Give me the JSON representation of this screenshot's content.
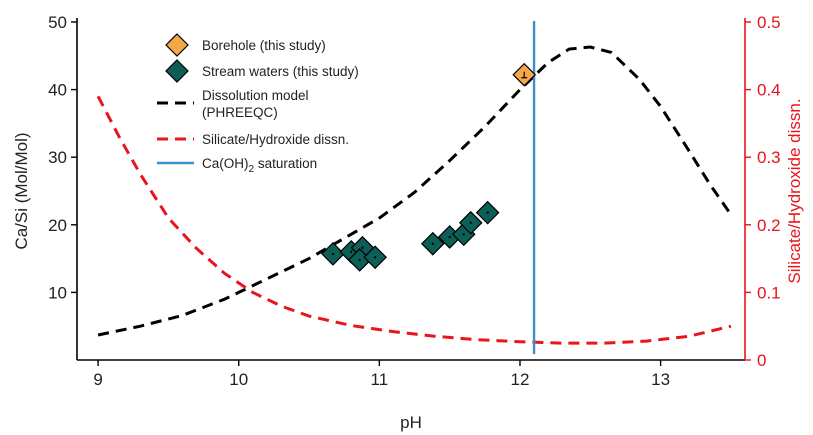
{
  "chart_data": {
    "type": "scatter",
    "xlabel": "pH",
    "ylabel": "Ca/Si (Mol/Mol)",
    "y2label": "Silicate/Hydroxide dissn.",
    "xlim": [
      8.85,
      13.6
    ],
    "ylim": [
      0,
      50
    ],
    "y2lim": [
      0,
      0.5
    ],
    "xticks": [
      9,
      10,
      11,
      12,
      13
    ],
    "yticks": [
      10,
      20,
      30,
      40,
      50
    ],
    "y2ticks": [
      0,
      0.1,
      0.2,
      0.3,
      0.4,
      0.5
    ],
    "y2ticklabels": [
      "0",
      "0.1",
      "0.2",
      "0.3",
      "0.4",
      "0.5"
    ],
    "grid": false,
    "legend_position": "top-left",
    "colors": {
      "borehole": "#f5a84a",
      "stream": "#0c5e57",
      "dissolution": "#000000",
      "silicate": "#e8151b",
      "saturation": "#3d8fcb",
      "right_axis": "#e8151b"
    },
    "series": [
      {
        "name": "Borehole (this study)",
        "kind": "scatter",
        "marker": "diamond",
        "points": [
          [
            12.03,
            42.2
          ]
        ]
      },
      {
        "name": "Stream waters (this study)",
        "kind": "scatter",
        "marker": "diamond",
        "points": [
          [
            10.67,
            15.7
          ],
          [
            10.8,
            16.0
          ],
          [
            10.88,
            16.6
          ],
          [
            10.86,
            14.8
          ],
          [
            10.97,
            15.2
          ],
          [
            11.38,
            17.2
          ],
          [
            11.5,
            18.2
          ],
          [
            11.6,
            18.6
          ],
          [
            11.65,
            20.3
          ],
          [
            11.77,
            21.8
          ]
        ]
      },
      {
        "name": "Dissolution model",
        "name_line2": "(PHREEQC)",
        "kind": "line",
        "style": "dashed",
        "axis": "left",
        "points": [
          [
            9.0,
            3.7
          ],
          [
            9.3,
            5.0
          ],
          [
            9.6,
            6.6
          ],
          [
            9.9,
            9.0
          ],
          [
            10.1,
            11.0
          ],
          [
            10.3,
            13.0
          ],
          [
            10.5,
            15.0
          ],
          [
            10.75,
            18.0
          ],
          [
            11.0,
            21.0
          ],
          [
            11.25,
            24.8
          ],
          [
            11.5,
            29.5
          ],
          [
            11.75,
            34.5
          ],
          [
            12.0,
            40.0
          ],
          [
            12.2,
            44.0
          ],
          [
            12.35,
            46.0
          ],
          [
            12.5,
            46.3
          ],
          [
            12.65,
            45.5
          ],
          [
            12.85,
            41.5
          ],
          [
            13.0,
            37.5
          ],
          [
            13.2,
            31.0
          ],
          [
            13.35,
            26.0
          ],
          [
            13.5,
            21.5
          ]
        ]
      },
      {
        "name": "Silicate/Hydroxide dissn.",
        "kind": "line",
        "style": "dashed",
        "axis": "right",
        "points": [
          [
            9.0,
            0.39
          ],
          [
            9.15,
            0.33
          ],
          [
            9.3,
            0.275
          ],
          [
            9.5,
            0.21
          ],
          [
            9.7,
            0.165
          ],
          [
            9.9,
            0.128
          ],
          [
            10.1,
            0.1
          ],
          [
            10.3,
            0.08
          ],
          [
            10.5,
            0.065
          ],
          [
            10.8,
            0.051
          ],
          [
            11.1,
            0.042
          ],
          [
            11.4,
            0.035
          ],
          [
            11.7,
            0.03
          ],
          [
            12.0,
            0.027
          ],
          [
            12.3,
            0.025
          ],
          [
            12.6,
            0.025
          ],
          [
            12.9,
            0.028
          ],
          [
            13.2,
            0.035
          ],
          [
            13.5,
            0.05
          ]
        ]
      },
      {
        "name": "Ca(OH)2 saturation",
        "name_parts": [
          "Ca(OH)",
          "2",
          " saturation"
        ],
        "kind": "vline",
        "x": 12.1
      }
    ]
  }
}
